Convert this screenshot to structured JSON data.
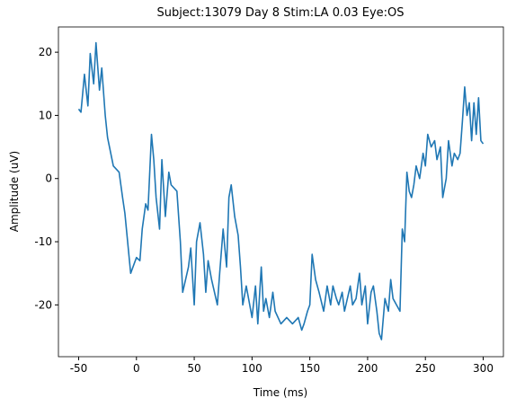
{
  "chart_data": {
    "type": "line",
    "title": "Subject:13079 Day 8 Stim:LA 0.03 Eye:OS",
    "x_label": "Time (ms)",
    "y_label": "Amplitude (uV)",
    "x": [
      -50,
      -48,
      -45,
      -42,
      -40,
      -37,
      -35,
      -32,
      -30,
      -27,
      -25,
      -20,
      -15,
      -12,
      -10,
      -5,
      0,
      3,
      5,
      8,
      10,
      13,
      15,
      17,
      20,
      22,
      25,
      28,
      30,
      35,
      38,
      40,
      45,
      47,
      50,
      52,
      55,
      58,
      60,
      62,
      65,
      70,
      72,
      75,
      78,
      80,
      82,
      85,
      88,
      90,
      92,
      95,
      100,
      103,
      105,
      108,
      110,
      112,
      115,
      118,
      120,
      125,
      130,
      135,
      140,
      143,
      145,
      148,
      150,
      152,
      155,
      158,
      162,
      165,
      168,
      170,
      173,
      175,
      178,
      180,
      185,
      187,
      190,
      193,
      195,
      198,
      200,
      203,
      205,
      208,
      210,
      212,
      215,
      218,
      220,
      222,
      225,
      228,
      230,
      232,
      234,
      236,
      238,
      240,
      242,
      245,
      248,
      250,
      252,
      255,
      258,
      260,
      263,
      265,
      268,
      270,
      273,
      275,
      278,
      280,
      282,
      284,
      286,
      288,
      290,
      292,
      294,
      296,
      298,
      300
    ],
    "series": [
      {
        "name": "Amplitude",
        "color": "#1f77b4",
        "values": [
          11,
          10.5,
          16.5,
          11.5,
          19.8,
          15,
          21.5,
          14,
          17.5,
          10,
          6.5,
          2,
          1,
          -3,
          -5.5,
          -15,
          -12.5,
          -13,
          -8,
          -4,
          -5,
          7,
          3,
          -3,
          -8,
          3,
          -6,
          1,
          -1,
          -2,
          -10,
          -18,
          -14,
          -11,
          -20,
          -10,
          -7,
          -12,
          -18,
          -13,
          -16,
          -20,
          -15,
          -8,
          -14,
          -3,
          -1,
          -6,
          -9,
          -14,
          -20,
          -17,
          -22,
          -17,
          -23,
          -14,
          -21,
          -19,
          -22,
          -18,
          -21,
          -23,
          -22,
          -23,
          -22,
          -24,
          -23,
          -21,
          -20,
          -12,
          -16,
          -18,
          -21,
          -17,
          -20,
          -17,
          -19,
          -20,
          -18,
          -21,
          -17,
          -20,
          -19,
          -15,
          -20,
          -17,
          -23,
          -18,
          -17,
          -21,
          -24.5,
          -25.5,
          -19,
          -21,
          -16,
          -19,
          -20,
          -21,
          -8,
          -10,
          1,
          -2,
          -3,
          -1,
          2,
          0,
          4,
          2,
          7,
          5,
          6,
          3,
          5,
          -3,
          0,
          6,
          2,
          4,
          3,
          4,
          9,
          14.5,
          10,
          12,
          6,
          12,
          7,
          12.8,
          6,
          5.5
        ]
      }
    ],
    "xlim": [
      -67.5,
      317.5
    ],
    "xticks": [
      -50,
      0,
      50,
      100,
      150,
      200,
      250,
      300
    ],
    "ylim": [
      -28.2,
      24
    ],
    "yticks": [
      -20,
      -10,
      0,
      10,
      20
    ]
  }
}
